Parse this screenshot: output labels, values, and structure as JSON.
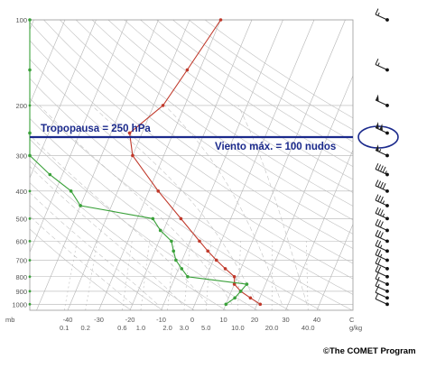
{
  "annotations": {
    "tropopause": "Tropopausa = 250 hPa",
    "max_wind": "Viento máx. = 100 nudos"
  },
  "credit": "©The COMET Program",
  "axes": {
    "pressure_unit": "mb",
    "pressure_ticks": [
      "100",
      "200",
      "300",
      "400",
      "500",
      "600",
      "700",
      "800",
      "900",
      "1000"
    ],
    "temperature_ticks": [
      "-40",
      "-30",
      "-20",
      "-10",
      "0",
      "10",
      "20",
      "30",
      "40"
    ],
    "temperature_unit": "C",
    "mixing_ratio_ticks": [
      "0.1",
      "0.2",
      "0.6",
      "1.0",
      "2.0",
      "3.0",
      "5.0",
      "10.0",
      "20.0",
      "40.0"
    ],
    "mixing_ratio_unit": "g/kg"
  },
  "chart_data": {
    "type": "line",
    "y_scale": "log-pressure",
    "ylim": [
      1050,
      100
    ],
    "xlim": [
      -50,
      40
    ],
    "tropopause_hpa": 250,
    "max_wind_knots": 100,
    "series": [
      {
        "color": "#c0392b",
        "points": [
          {
            "p": 100,
            "t": -30
          },
          {
            "p": 150,
            "t": -34
          },
          {
            "p": 200,
            "t": -37
          },
          {
            "p": 250,
            "t": -44
          },
          {
            "p": 300,
            "t": -40
          },
          {
            "p": 400,
            "t": -27
          },
          {
            "p": 500,
            "t": -16
          },
          {
            "p": 600,
            "t": -7
          },
          {
            "p": 650,
            "t": -3
          },
          {
            "p": 700,
            "t": 1
          },
          {
            "p": 750,
            "t": 5
          },
          {
            "p": 800,
            "t": 9
          },
          {
            "p": 850,
            "t": 10
          },
          {
            "p": 900,
            "t": 13
          },
          {
            "p": 950,
            "t": 17
          },
          {
            "p": 1000,
            "t": 21
          }
        ]
      },
      {
        "color": "#3aa13a",
        "points": [
          {
            "p": 100,
            "t": -93
          },
          {
            "p": 150,
            "t": -89
          },
          {
            "p": 250,
            "t": -82
          },
          {
            "p": 300,
            "t": -75
          },
          {
            "p": 350,
            "t": -64
          },
          {
            "p": 400,
            "t": -55
          },
          {
            "p": 450,
            "t": -50
          },
          {
            "p": 500,
            "t": -25
          },
          {
            "p": 550,
            "t": -21
          },
          {
            "p": 600,
            "t": -16
          },
          {
            "p": 650,
            "t": -14
          },
          {
            "p": 700,
            "t": -12
          },
          {
            "p": 750,
            "t": -9
          },
          {
            "p": 800,
            "t": -6
          },
          {
            "p": 850,
            "t": 14
          },
          {
            "p": 900,
            "t": 13
          },
          {
            "p": 950,
            "t": 12
          },
          {
            "p": 1000,
            "t": 10
          }
        ]
      }
    ],
    "winds": [
      {
        "p": 100,
        "kt": 15
      },
      {
        "p": 150,
        "kt": 15
      },
      {
        "p": 200,
        "kt": 50
      },
      {
        "p": 250,
        "kt": 100
      },
      {
        "p": 300,
        "kt": 55
      },
      {
        "p": 350,
        "kt": 45
      },
      {
        "p": 400,
        "kt": 40
      },
      {
        "p": 450,
        "kt": 35
      },
      {
        "p": 500,
        "kt": 35
      },
      {
        "p": 550,
        "kt": 30
      },
      {
        "p": 600,
        "kt": 30
      },
      {
        "p": 650,
        "kt": 25
      },
      {
        "p": 700,
        "kt": 25
      },
      {
        "p": 750,
        "kt": 20
      },
      {
        "p": 800,
        "kt": 20
      },
      {
        "p": 850,
        "kt": 15
      },
      {
        "p": 900,
        "kt": 15
      },
      {
        "p": 950,
        "kt": 10
      },
      {
        "p": 1000,
        "kt": 10
      }
    ],
    "highlighted_wind_hpa": 250
  }
}
